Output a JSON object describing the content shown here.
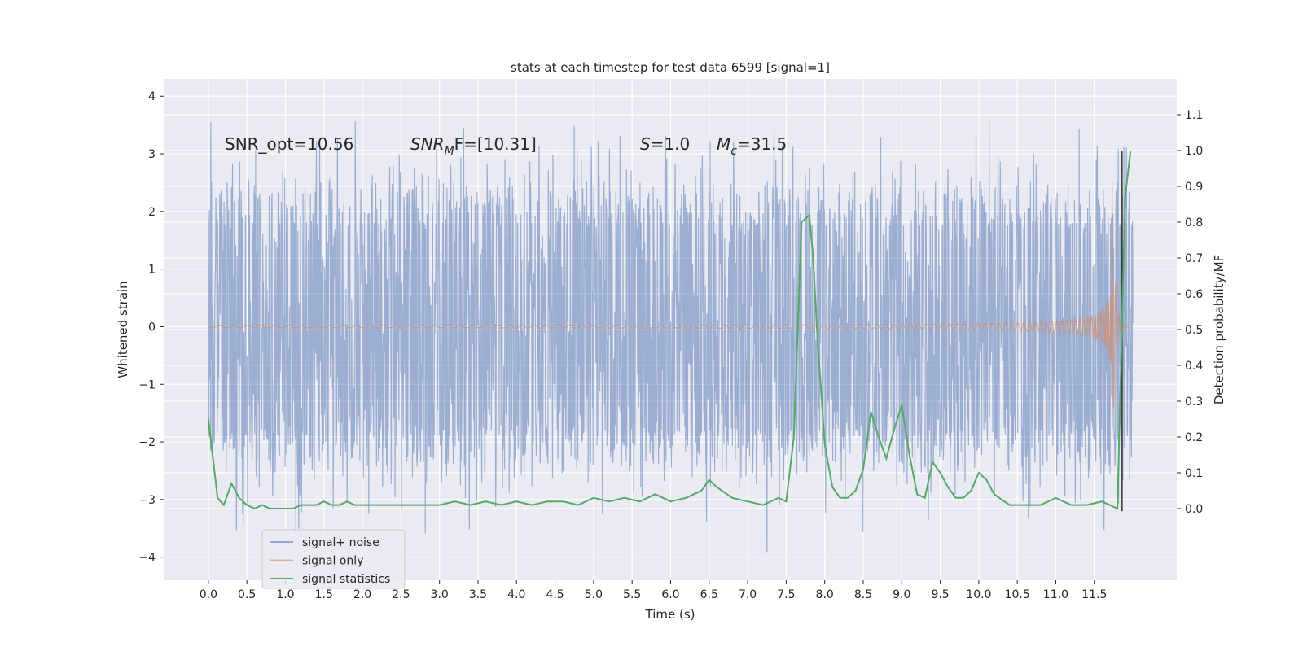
{
  "chart_data": {
    "type": "line",
    "title": "stats at each timestep for test data 6599 [signal=1]",
    "xlabel": "Time (s)",
    "ylabel_left": "Whitened strain",
    "ylabel_right": "Detection probability/MF",
    "xlim": [
      -0.58,
      12.57
    ],
    "ylim_left": [
      -4.4,
      4.3
    ],
    "ylim_right": [
      -0.2,
      1.2
    ],
    "x_ticks": [
      "0.0",
      "0.5",
      "1.0",
      "1.5",
      "2.0",
      "2.5",
      "3.0",
      "3.5",
      "4.0",
      "4.5",
      "5.0",
      "5.5",
      "6.0",
      "6.5",
      "7.0",
      "7.5",
      "8.0",
      "8.5",
      "9.0",
      "9.5",
      "10.0",
      "10.5",
      "11.0",
      "11.5"
    ],
    "y_ticks_left": [
      "−4",
      "−3",
      "−2",
      "−1",
      "0",
      "1",
      "2",
      "3",
      "4"
    ],
    "y_ticks_right": [
      "0.0",
      "0.1",
      "0.2",
      "0.3",
      "0.4",
      "0.5",
      "0.6",
      "0.7",
      "0.8",
      "0.9",
      "1.0",
      "1.1"
    ],
    "grid": true,
    "legend_position": "lower-left",
    "annotations": {
      "snr_opt": "SNR_opt=10.56",
      "snr_mf_sym": "SNR",
      "snr_mf_sub": "M",
      "snr_mf_rest": "F=[10.31]",
      "s_sym": "S",
      "s_rest": "=1.0",
      "mc_sym": "M",
      "mc_sub": "c",
      "mc_rest": "=31.5"
    },
    "series": [
      {
        "name": "signal+ noise",
        "color": "#4c72b0",
        "time_range": [
          0.0,
          12.0
        ],
        "band": [
          -1.8,
          1.8
        ],
        "peaks": [
          -4.05,
          3.9
        ]
      },
      {
        "name": "signal only",
        "color": "#dd8452",
        "time_range": [
          0.0,
          11.95
        ],
        "merger_time": 11.73,
        "peak_amplitude": 2.6
      },
      {
        "name": "signal statistics",
        "color": "#55a868",
        "x": [
          0.0,
          0.12,
          0.2,
          0.3,
          0.4,
          0.5,
          0.6,
          0.7,
          0.8,
          0.9,
          1.0,
          1.1,
          1.2,
          1.3,
          1.4,
          1.5,
          1.6,
          1.7,
          1.8,
          1.9,
          2.0,
          2.2,
          2.4,
          2.6,
          2.8,
          3.0,
          3.2,
          3.4,
          3.6,
          3.8,
          4.0,
          4.2,
          4.4,
          4.6,
          4.8,
          5.0,
          5.2,
          5.4,
          5.6,
          5.8,
          6.0,
          6.2,
          6.4,
          6.5,
          6.6,
          6.8,
          7.0,
          7.2,
          7.4,
          7.5,
          7.6,
          7.7,
          7.8,
          7.85,
          7.9,
          8.0,
          8.1,
          8.2,
          8.3,
          8.4,
          8.5,
          8.6,
          8.7,
          8.8,
          8.9,
          9.0,
          9.1,
          9.2,
          9.3,
          9.4,
          9.5,
          9.6,
          9.7,
          9.8,
          9.9,
          10.0,
          10.1,
          10.2,
          10.4,
          10.6,
          10.8,
          11.0,
          11.2,
          11.4,
          11.6,
          11.8,
          11.9,
          11.97
        ],
        "values": [
          0.25,
          0.03,
          0.01,
          0.07,
          0.03,
          0.01,
          0.0,
          0.01,
          0.0,
          0.0,
          0.0,
          0.0,
          0.01,
          0.01,
          0.01,
          0.02,
          0.01,
          0.01,
          0.02,
          0.01,
          0.01,
          0.01,
          0.01,
          0.01,
          0.01,
          0.01,
          0.02,
          0.01,
          0.02,
          0.01,
          0.02,
          0.01,
          0.02,
          0.02,
          0.01,
          0.03,
          0.02,
          0.03,
          0.02,
          0.04,
          0.02,
          0.03,
          0.05,
          0.08,
          0.06,
          0.03,
          0.02,
          0.01,
          0.03,
          0.02,
          0.2,
          0.8,
          0.82,
          0.7,
          0.5,
          0.18,
          0.06,
          0.03,
          0.03,
          0.05,
          0.11,
          0.27,
          0.2,
          0.14,
          0.22,
          0.29,
          0.15,
          0.04,
          0.03,
          0.13,
          0.1,
          0.06,
          0.03,
          0.03,
          0.05,
          0.1,
          0.08,
          0.04,
          0.01,
          0.01,
          0.01,
          0.03,
          0.01,
          0.01,
          0.02,
          0.0,
          0.87,
          1.0
        ]
      }
    ]
  }
}
